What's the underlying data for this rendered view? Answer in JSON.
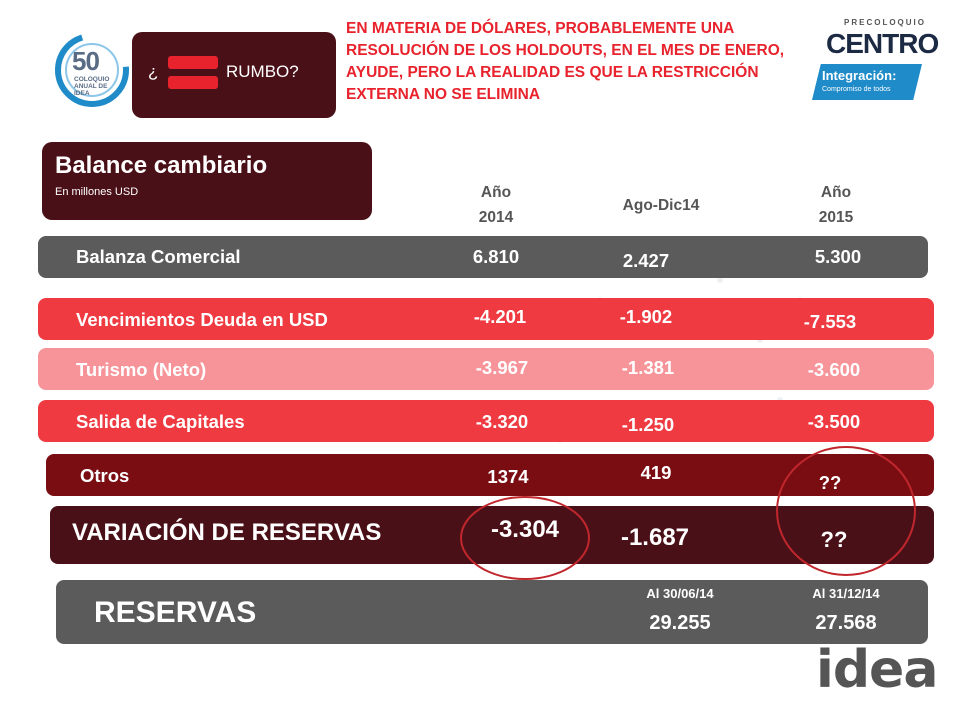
{
  "logo": {
    "number": "50",
    "text": "COLOQUIO ANUAL DE IDEA"
  },
  "rumbo": {
    "open_q": "¿",
    "word": "RUMBO?"
  },
  "headline": "EN MATERIA DE DÓLARES, PROBABLEMENTE UNA RESOLUCIÓN DE LOS HOLDOUTS, EN EL MES DE ENERO, AYUDE, PERO LA REALIDAD ES QUE  LA RESTRICCIÓN EXTERNA NO SE ELIMINA",
  "sponsor": {
    "pre": "PRECOLOQUIO",
    "name": "CENTRO",
    "integ_title": "Integración:",
    "integ_sub": "Compromiso de todos"
  },
  "section": {
    "title": "Balance cambiario",
    "subtitle": "En millones USD"
  },
  "columns": {
    "c1_line1": "Año",
    "c1_line2": "2014",
    "c2": "Ago-Dic14",
    "c3_line1": "Año",
    "c3_line2": "2015"
  },
  "rows": [
    {
      "label": "Balanza Comercial",
      "v1": "6.810",
      "v2": "2.427",
      "v3": "5.300"
    },
    {
      "label": "Vencimientos Deuda en USD",
      "v1": "-4.201",
      "v2": "-1.902",
      "v3": "-7.553"
    },
    {
      "label": "Turismo (Neto)",
      "v1": "-3.967",
      "v2": "-1.381",
      "v3": "-3.600"
    },
    {
      "label": "Salida de Capitales",
      "v1": "-3.320",
      "v2": "-1.250",
      "v3": "-3.500"
    },
    {
      "label": "Otros",
      "v1": "1374",
      "v2": "419",
      "v3": "??"
    }
  ],
  "variacion": {
    "label": "VARIACIÓN DE RESERVAS",
    "v1": "-3.304",
    "v2": "-1.687",
    "v3": "??"
  },
  "reservas": {
    "label": "RESERVAS",
    "d1": "Al 30/06/14",
    "v1": "29.255",
    "d2": "Al 31/12/14",
    "v2": "27.568"
  },
  "brand": "idea",
  "colors": {
    "dark_wine": "#4a1018",
    "red": "#e8232d",
    "grey": "#5b5b5b",
    "pink": "#f7949a",
    "maroon": "#7a0d12"
  }
}
